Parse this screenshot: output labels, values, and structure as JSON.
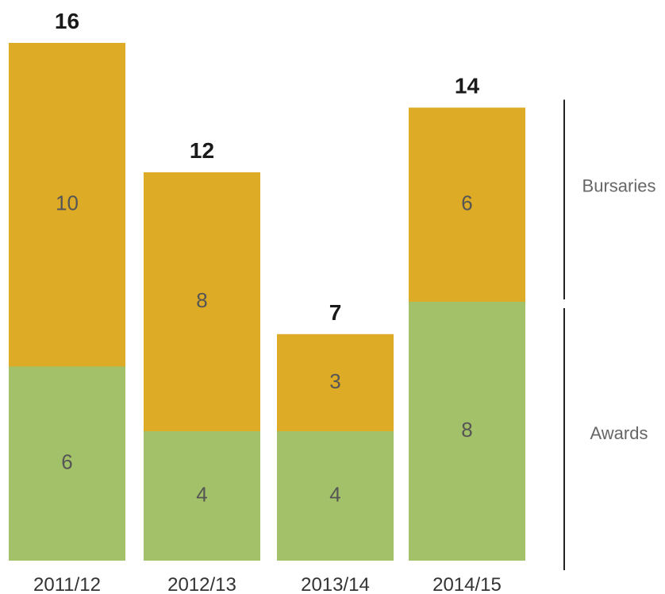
{
  "chart_data": {
    "type": "bar",
    "stacked": true,
    "categories": [
      "2011/12",
      "2012/13",
      "2013/14",
      "2014/15"
    ],
    "series": [
      {
        "name": "Awards",
        "values": [
          6,
          4,
          4,
          8
        ],
        "color": "#a3c168"
      },
      {
        "name": "Bursaries",
        "values": [
          10,
          8,
          3,
          6
        ],
        "color": "#deab26"
      }
    ],
    "totals": [
      16,
      12,
      7,
      14
    ],
    "ylim": [
      0,
      16
    ],
    "grid": false,
    "legend": "right, bracketed labels"
  }
}
